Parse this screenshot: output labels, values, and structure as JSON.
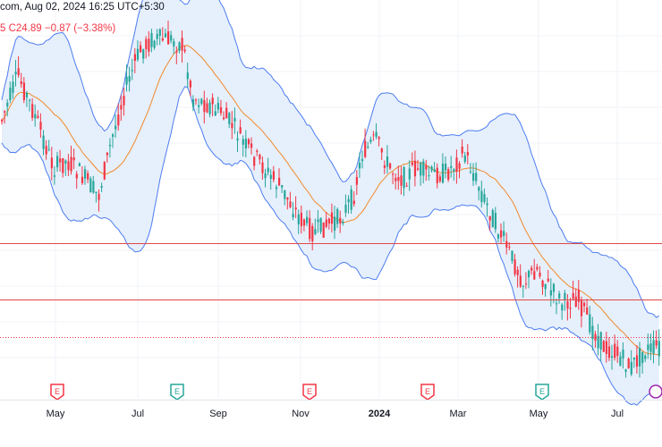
{
  "header": {
    "source_text": "com, Aug 02, 2024 16:25 UTC+5:30",
    "ohlc_close": "C24.89",
    "ohlc_change": "−0.87 (−3.38%)",
    "ohlc_prefix": "5"
  },
  "colors": {
    "up": "#26a69a",
    "down": "#f23645",
    "band": "#4c7df0",
    "band_fill": "#e6effc",
    "ma": "#f08a2c",
    "hline": "#e04848",
    "price_dotted": "#f23645",
    "grid": "#f0f3fa",
    "axis_text": "#131722",
    "earnings": "#f23645",
    "dividends": "#26a69a"
  },
  "chart_data": {
    "type": "candlestick",
    "title": "",
    "xlabel": "",
    "ylabel": "",
    "x_tick_labels": [
      "May",
      "Jul",
      "Sep",
      "Nov",
      "2024",
      "Mar",
      "May",
      "Jul"
    ],
    "horizontal_lines": [
      "support_upper",
      "support_lower"
    ],
    "event_markers": [
      {
        "type": "earnings",
        "label": "E",
        "after_tick": "May"
      },
      {
        "type": "dividends",
        "label": "E",
        "after_tick": "Jul"
      },
      {
        "type": "earnings",
        "label": "E",
        "after_tick": "Nov"
      },
      {
        "type": "earnings",
        "label": "E",
        "after_tick": "2024"
      },
      {
        "type": "dividends",
        "label": "E",
        "after_tick": "May"
      },
      {
        "type": "split",
        "label": "",
        "after_tick": "Jul"
      }
    ],
    "indicators": [
      "Bollinger Bands (upper, lower)",
      "Moving average (basis)"
    ],
    "price_profile": [
      [
        0,
        0.3
      ],
      [
        20,
        0.16
      ],
      [
        40,
        0.28
      ],
      [
        60,
        0.42
      ],
      [
        75,
        0.4
      ],
      [
        95,
        0.45
      ],
      [
        110,
        0.5
      ],
      [
        125,
        0.34
      ],
      [
        140,
        0.2
      ],
      [
        155,
        0.1
      ],
      [
        170,
        0.06
      ],
      [
        190,
        0.06
      ],
      [
        205,
        0.08
      ],
      [
        215,
        0.22
      ],
      [
        230,
        0.24
      ],
      [
        245,
        0.26
      ],
      [
        260,
        0.3
      ],
      [
        275,
        0.36
      ],
      [
        295,
        0.42
      ],
      [
        315,
        0.48
      ],
      [
        335,
        0.56
      ],
      [
        350,
        0.6
      ],
      [
        365,
        0.58
      ],
      [
        380,
        0.56
      ],
      [
        395,
        0.5
      ],
      [
        405,
        0.38
      ],
      [
        420,
        0.34
      ],
      [
        435,
        0.42
      ],
      [
        450,
        0.45
      ],
      [
        465,
        0.42
      ],
      [
        480,
        0.44
      ],
      [
        500,
        0.43
      ],
      [
        520,
        0.38
      ],
      [
        540,
        0.5
      ],
      [
        555,
        0.58
      ],
      [
        570,
        0.66
      ],
      [
        585,
        0.74
      ],
      [
        600,
        0.7
      ],
      [
        615,
        0.76
      ],
      [
        630,
        0.8
      ],
      [
        645,
        0.78
      ],
      [
        660,
        0.86
      ],
      [
        675,
        0.92
      ],
      [
        690,
        0.94
      ],
      [
        705,
        0.98
      ],
      [
        720,
        0.93
      ],
      [
        740,
        0.92
      ]
    ]
  }
}
